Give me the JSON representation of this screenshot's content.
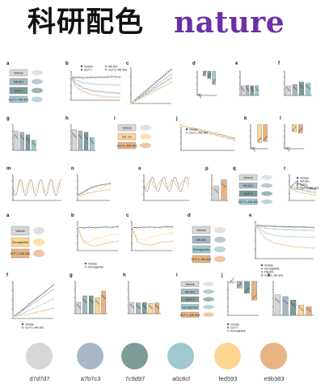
{
  "header": {
    "title_cn": "科研配色",
    "brand": "nature"
  },
  "figure": {
    "panels": [
      {
        "id": "a",
        "letter": "a"
      },
      {
        "id": "b",
        "letter": "b"
      },
      {
        "id": "c",
        "letter": "c"
      },
      {
        "id": "d",
        "letter": "d"
      },
      {
        "id": "e",
        "letter": "e"
      },
      {
        "id": "f",
        "letter": "f"
      },
      {
        "id": "g",
        "letter": "g"
      },
      {
        "id": "h",
        "letter": "h"
      },
      {
        "id": "i",
        "letter": "i"
      },
      {
        "id": "j",
        "letter": "j"
      },
      {
        "id": "k",
        "letter": "k"
      },
      {
        "id": "l",
        "letter": "l"
      },
      {
        "id": "m",
        "letter": "m"
      },
      {
        "id": "n",
        "letter": "n"
      },
      {
        "id": "o",
        "letter": "o"
      },
      {
        "id": "p",
        "letter": "p"
      },
      {
        "id": "q",
        "letter": "q"
      },
      {
        "id": "r",
        "letter": "r"
      },
      {
        "id": "a2",
        "letter": "a"
      },
      {
        "id": "b2",
        "letter": "b"
      },
      {
        "id": "c2",
        "letter": "c"
      },
      {
        "id": "d2",
        "letter": "d"
      },
      {
        "id": "e2",
        "letter": "e"
      },
      {
        "id": "f2",
        "letter": "f"
      },
      {
        "id": "g2",
        "letter": "g"
      },
      {
        "id": "h2",
        "letter": "h"
      },
      {
        "id": "i2",
        "letter": "i"
      },
      {
        "id": "j2",
        "letter": "j"
      },
      {
        "id": "k2",
        "letter": "k"
      }
    ],
    "legend_labels": {
      "vehicle": "Vehicle",
      "mk801": "MK-801",
      "glp1": "GLP-1",
      "glp1_mk801": "GLP-1–MK-801",
      "semaglutide": "Semaglutide"
    },
    "boxes_a": [
      "Vehicle",
      "MK-801",
      "GLP-1",
      "GLP-1–MK-801"
    ],
    "boxes_i": [
      "Vehicle",
      "Cal. res",
      "GLP-1–MK-801"
    ],
    "boxes_q": [
      "Vehicle",
      "MK-801",
      "GLP-1",
      "GLP-1–MK-801"
    ],
    "boxes_a2": [
      "Vehicle",
      "Semaglutide",
      "GLP-1–MK-801"
    ],
    "boxes_d2": [
      "Vehicle",
      "MK-801",
      "Semaglutide",
      "GLP-1–MK-801"
    ],
    "boxes_i2": [
      "Vehicle",
      "MK-801",
      "GLP-1",
      "Semaglutide",
      "GLP-1–MK-801"
    ]
  },
  "palette": {
    "colors": [
      {
        "hex": "#d7d7d7",
        "label": "d7d7d7"
      },
      {
        "hex": "#a7b7c3",
        "label": "a7b7c3"
      },
      {
        "hex": "#7c9d97",
        "label": "7c9d97"
      },
      {
        "hex": "#a0c8cf",
        "label": "a0c8cf"
      },
      {
        "hex": "#fed593",
        "label": "fed593"
      },
      {
        "hex": "#e9b383",
        "label": "e9b383"
      }
    ]
  }
}
